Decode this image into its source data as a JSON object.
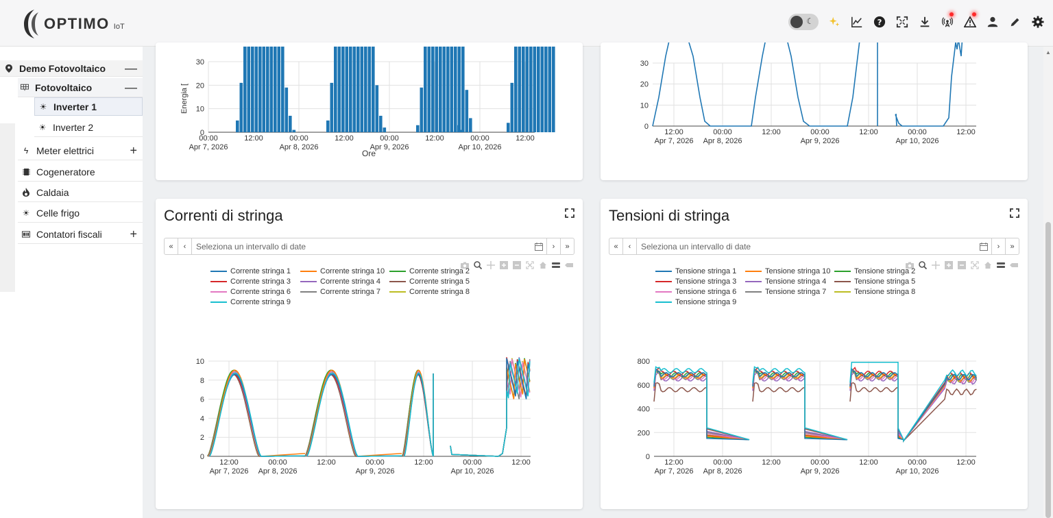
{
  "app": {
    "logo_text": "OPTIMO",
    "logo_sub": "IoT"
  },
  "toolbar": {
    "icons": [
      "theme-toggle",
      "sparkles-icon",
      "chart-icon",
      "help-icon",
      "fullscreen-icon",
      "download-icon",
      "antenna-icon",
      "warning-icon",
      "user-icon",
      "pencil-icon",
      "gear-icon"
    ]
  },
  "sidebar": {
    "root": {
      "label": "Demo Fotovoltaico",
      "toggle": "—"
    },
    "group": {
      "label": "Fotovoltaico",
      "toggle": "—"
    },
    "inverters": [
      {
        "label": "Inverter 1",
        "active": true
      },
      {
        "label": "Inverter 2",
        "active": false
      }
    ],
    "items": [
      {
        "label": "Meter elettrici",
        "toggle": "+"
      },
      {
        "label": "Cogeneratore",
        "toggle": ""
      },
      {
        "label": "Caldaia",
        "toggle": ""
      },
      {
        "label": "Celle frigo",
        "toggle": ""
      },
      {
        "label": "Contatori fiscali",
        "toggle": "+"
      }
    ]
  },
  "top_left_chart": {
    "ylabel": "Energia [",
    "xlabel": "Ore",
    "yticks": [
      "0",
      "10",
      "20",
      "30"
    ],
    "xticks": [
      {
        "t": "00:00",
        "d": "Apr 7, 2026"
      },
      {
        "t": "12:00",
        "d": ""
      },
      {
        "t": "00:00",
        "d": "Apr 8, 2026"
      },
      {
        "t": "12:00",
        "d": ""
      },
      {
        "t": "00:00",
        "d": "Apr 9, 2026"
      },
      {
        "t": "12:00",
        "d": ""
      },
      {
        "t": "00:00",
        "d": "Apr 10, 2026"
      },
      {
        "t": "12:00",
        "d": ""
      }
    ]
  },
  "top_right_chart": {
    "yticks": [
      "0",
      "10",
      "20",
      "30"
    ],
    "xticks": [
      {
        "t": "12:00",
        "d": "Apr 7, 2026"
      },
      {
        "t": "00:00",
        "d": "Apr 8, 2026"
      },
      {
        "t": "12:00",
        "d": ""
      },
      {
        "t": "00:00",
        "d": "Apr 9, 2026"
      },
      {
        "t": "12:00",
        "d": ""
      },
      {
        "t": "00:00",
        "d": "Apr 10, 2026"
      },
      {
        "t": "12:00",
        "d": ""
      }
    ]
  },
  "currents_card": {
    "title": "Correnti di stringa",
    "date_placeholder": "Seleziona un intervallo di date",
    "nav_first": "«",
    "nav_prev": "‹",
    "nav_next": "›",
    "nav_last": "»",
    "legend": [
      {
        "name": "Corrente stringa 1",
        "color": "#1f77b4"
      },
      {
        "name": "Corrente stringa 10",
        "color": "#ff7f0e"
      },
      {
        "name": "Corrente stringa 2",
        "color": "#2ca02c"
      },
      {
        "name": "Corrente stringa 3",
        "color": "#d62728"
      },
      {
        "name": "Corrente stringa 4",
        "color": "#9467bd"
      },
      {
        "name": "Corrente stringa 5",
        "color": "#8c564b"
      },
      {
        "name": "Corrente stringa 6",
        "color": "#e377c2"
      },
      {
        "name": "Corrente stringa 7",
        "color": "#7f7f7f"
      },
      {
        "name": "Corrente stringa 8",
        "color": "#bcbd22"
      },
      {
        "name": "Corrente stringa 9",
        "color": "#17becf"
      }
    ],
    "yticks": [
      "0",
      "2",
      "4",
      "6",
      "8",
      "10"
    ],
    "xticks": [
      {
        "t": "12:00",
        "d": "Apr 7, 2026"
      },
      {
        "t": "00:00",
        "d": "Apr 8, 2026"
      },
      {
        "t": "12:00",
        "d": ""
      },
      {
        "t": "00:00",
        "d": "Apr 9, 2026"
      },
      {
        "t": "12:00",
        "d": ""
      },
      {
        "t": "00:00",
        "d": "Apr 10, 2026"
      },
      {
        "t": "12:00",
        "d": ""
      }
    ]
  },
  "voltages_card": {
    "title": "Tensioni di stringa",
    "date_placeholder": "Seleziona un intervallo di date",
    "nav_first": "«",
    "nav_prev": "‹",
    "nav_next": "›",
    "nav_last": "»",
    "legend": [
      {
        "name": "Tensione stringa 1",
        "color": "#1f77b4"
      },
      {
        "name": "Tensione stringa 10",
        "color": "#ff7f0e"
      },
      {
        "name": "Tensione stringa 2",
        "color": "#2ca02c"
      },
      {
        "name": "Tensione stringa 3",
        "color": "#d62728"
      },
      {
        "name": "Tensione stringa 4",
        "color": "#9467bd"
      },
      {
        "name": "Tensione stringa 5",
        "color": "#8c564b"
      },
      {
        "name": "Tensione stringa 6",
        "color": "#e377c2"
      },
      {
        "name": "Tensione stringa 7",
        "color": "#7f7f7f"
      },
      {
        "name": "Tensione stringa 8",
        "color": "#bcbd22"
      },
      {
        "name": "Tensione stringa 9",
        "color": "#17becf"
      }
    ],
    "yticks": [
      "0",
      "200",
      "400",
      "600",
      "800"
    ],
    "xticks": [
      {
        "t": "12:00",
        "d": "Apr 7, 2026"
      },
      {
        "t": "00:00",
        "d": "Apr 8, 2026"
      },
      {
        "t": "12:00",
        "d": ""
      },
      {
        "t": "00:00",
        "d": "Apr 9, 2026"
      },
      {
        "t": "12:00",
        "d": ""
      },
      {
        "t": "00:00",
        "d": "Apr 10, 2026"
      },
      {
        "t": "12:00",
        "d": ""
      }
    ]
  }
}
